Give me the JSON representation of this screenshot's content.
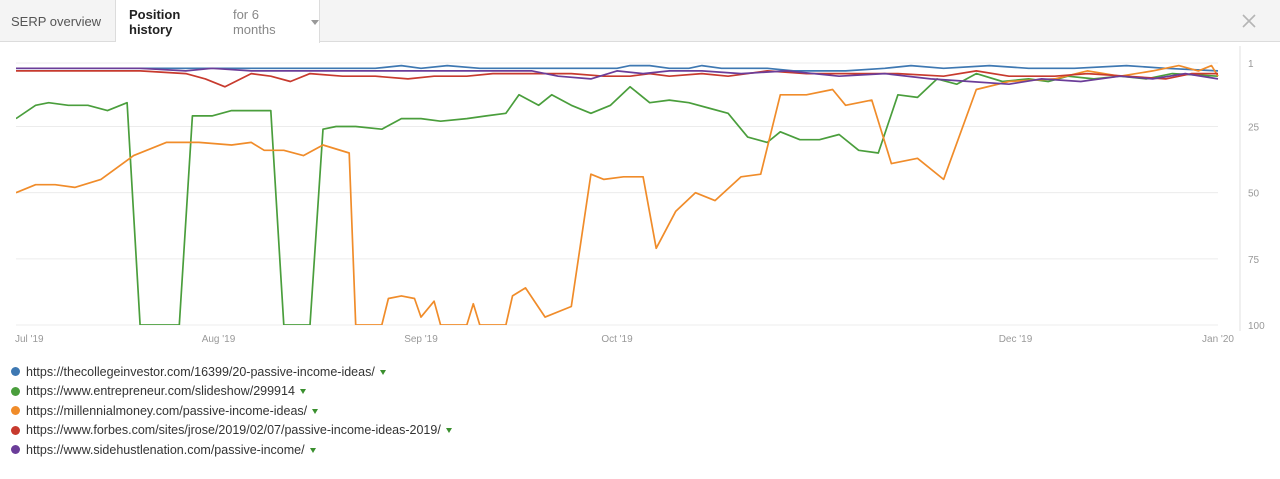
{
  "tabs": {
    "serp_label": "SERP overview",
    "history_label": "Position history",
    "history_period": "for 6 months"
  },
  "chart_data": {
    "type": "line",
    "title": "",
    "xlabel": "",
    "ylabel": "",
    "x_axis": {
      "type": "date",
      "range": [
        "2019-07-01",
        "2020-01-01"
      ],
      "ticks": [
        {
          "date": "2019-07-01",
          "label": "Jul '19"
        },
        {
          "date": "2019-08-01",
          "label": "Aug '19"
        },
        {
          "date": "2019-09-01",
          "label": "Sep '19"
        },
        {
          "date": "2019-10-01",
          "label": "Oct '19"
        },
        {
          "date": "2019-12-01",
          "label": "Dec '19"
        },
        {
          "date": "2020-01-01",
          "label": "Jan '20"
        }
      ]
    },
    "y_axis": {
      "reversed": true,
      "range": [
        1,
        100
      ],
      "ticks": [
        {
          "value": 1,
          "label": "1"
        },
        {
          "value": 25,
          "label": "25"
        },
        {
          "value": 50,
          "label": "50"
        },
        {
          "value": 75,
          "label": "75"
        },
        {
          "value": 100,
          "label": "100"
        }
      ]
    },
    "grid": true,
    "legend_position": "bottom-left",
    "series": [
      {
        "name": "https://thecollegeinvestor.com/16399/20-passive-income-ideas/",
        "color": "#3e78b2",
        "points": [
          [
            "2019-07-01",
            3
          ],
          [
            "2019-07-15",
            3
          ],
          [
            "2019-08-01",
            3
          ],
          [
            "2019-08-15",
            3
          ],
          [
            "2019-08-25",
            3
          ],
          [
            "2019-08-29",
            2
          ],
          [
            "2019-09-01",
            3
          ],
          [
            "2019-09-05",
            2
          ],
          [
            "2019-09-10",
            3
          ],
          [
            "2019-09-20",
            3
          ],
          [
            "2019-10-01",
            3
          ],
          [
            "2019-10-03",
            2
          ],
          [
            "2019-10-06",
            2
          ],
          [
            "2019-10-09",
            3
          ],
          [
            "2019-10-12",
            3
          ],
          [
            "2019-10-14",
            2
          ],
          [
            "2019-10-17",
            3
          ],
          [
            "2019-10-24",
            3
          ],
          [
            "2019-10-28",
            4
          ],
          [
            "2019-11-05",
            4
          ],
          [
            "2019-11-11",
            3
          ],
          [
            "2019-11-15",
            2
          ],
          [
            "2019-11-20",
            3
          ],
          [
            "2019-11-27",
            2
          ],
          [
            "2019-12-03",
            3
          ],
          [
            "2019-12-10",
            3
          ],
          [
            "2019-12-18",
            2
          ],
          [
            "2019-12-24",
            3
          ],
          [
            "2020-01-01",
            4
          ]
        ]
      },
      {
        "name": "https://www.entrepreneur.com/slideshow/299914",
        "color": "#4a9e3c",
        "points": [
          [
            "2019-07-01",
            22
          ],
          [
            "2019-07-04",
            17
          ],
          [
            "2019-07-06",
            16
          ],
          [
            "2019-07-09",
            17
          ],
          [
            "2019-07-12",
            17
          ],
          [
            "2019-07-15",
            19
          ],
          [
            "2019-07-18",
            16
          ],
          [
            "2019-07-20",
            100
          ],
          [
            "2019-07-26",
            100
          ],
          [
            "2019-07-28",
            21
          ],
          [
            "2019-07-31",
            21
          ],
          [
            "2019-08-03",
            19
          ],
          [
            "2019-08-06",
            19
          ],
          [
            "2019-08-09",
            19
          ],
          [
            "2019-08-11",
            100
          ],
          [
            "2019-08-15",
            100
          ],
          [
            "2019-08-17",
            26
          ],
          [
            "2019-08-19",
            25
          ],
          [
            "2019-08-22",
            25
          ],
          [
            "2019-08-26",
            26
          ],
          [
            "2019-08-29",
            22
          ],
          [
            "2019-09-01",
            22
          ],
          [
            "2019-09-04",
            23
          ],
          [
            "2019-09-08",
            22
          ],
          [
            "2019-09-11",
            21
          ],
          [
            "2019-09-14",
            20
          ],
          [
            "2019-09-16",
            13
          ],
          [
            "2019-09-19",
            17
          ],
          [
            "2019-09-21",
            13
          ],
          [
            "2019-09-24",
            17
          ],
          [
            "2019-09-27",
            20
          ],
          [
            "2019-09-30",
            17
          ],
          [
            "2019-10-03",
            10
          ],
          [
            "2019-10-06",
            16
          ],
          [
            "2019-10-09",
            15
          ],
          [
            "2019-10-12",
            16
          ],
          [
            "2019-10-15",
            18
          ],
          [
            "2019-10-18",
            20
          ],
          [
            "2019-10-21",
            29
          ],
          [
            "2019-10-24",
            31
          ],
          [
            "2019-10-26",
            27
          ],
          [
            "2019-10-29",
            30
          ],
          [
            "2019-11-01",
            30
          ],
          [
            "2019-11-04",
            28
          ],
          [
            "2019-11-07",
            34
          ],
          [
            "2019-11-10",
            35
          ],
          [
            "2019-11-13",
            13
          ],
          [
            "2019-11-16",
            14
          ],
          [
            "2019-11-19",
            7
          ],
          [
            "2019-11-22",
            9
          ],
          [
            "2019-11-25",
            5
          ],
          [
            "2019-11-29",
            8
          ],
          [
            "2019-12-03",
            7
          ],
          [
            "2019-12-06",
            8
          ],
          [
            "2019-12-09",
            6
          ],
          [
            "2019-12-13",
            7
          ],
          [
            "2019-12-17",
            6
          ],
          [
            "2019-12-21",
            7
          ],
          [
            "2019-12-25",
            5
          ],
          [
            "2020-01-01",
            6
          ]
        ]
      },
      {
        "name": "https://millennialmoney.com/passive-income-ideas/",
        "color": "#f08c2a",
        "points": [
          [
            "2019-07-01",
            50
          ],
          [
            "2019-07-04",
            47
          ],
          [
            "2019-07-07",
            47
          ],
          [
            "2019-07-10",
            48
          ],
          [
            "2019-07-14",
            45
          ],
          [
            "2019-07-19",
            36
          ],
          [
            "2019-07-24",
            31
          ],
          [
            "2019-07-29",
            31
          ],
          [
            "2019-08-03",
            32
          ],
          [
            "2019-08-06",
            31
          ],
          [
            "2019-08-08",
            34
          ],
          [
            "2019-08-11",
            34
          ],
          [
            "2019-08-14",
            36
          ],
          [
            "2019-08-17",
            32
          ],
          [
            "2019-08-21",
            35
          ],
          [
            "2019-08-22",
            100
          ],
          [
            "2019-08-26",
            100
          ],
          [
            "2019-08-27",
            90
          ],
          [
            "2019-08-29",
            89
          ],
          [
            "2019-08-31",
            90
          ],
          [
            "2019-09-01",
            97
          ],
          [
            "2019-09-03",
            91
          ],
          [
            "2019-09-04",
            100
          ],
          [
            "2019-09-08",
            100
          ],
          [
            "2019-09-09",
            92
          ],
          [
            "2019-09-10",
            100
          ],
          [
            "2019-09-14",
            100
          ],
          [
            "2019-09-15",
            89
          ],
          [
            "2019-09-17",
            86
          ],
          [
            "2019-09-20",
            97
          ],
          [
            "2019-09-24",
            93
          ],
          [
            "2019-09-27",
            43
          ],
          [
            "2019-09-29",
            45
          ],
          [
            "2019-10-02",
            44
          ],
          [
            "2019-10-05",
            44
          ],
          [
            "2019-10-07",
            71
          ],
          [
            "2019-10-10",
            57
          ],
          [
            "2019-10-13",
            50
          ],
          [
            "2019-10-16",
            53
          ],
          [
            "2019-10-20",
            44
          ],
          [
            "2019-10-23",
            43
          ],
          [
            "2019-10-26",
            13
          ],
          [
            "2019-10-30",
            13
          ],
          [
            "2019-11-03",
            11
          ],
          [
            "2019-11-05",
            17
          ],
          [
            "2019-11-09",
            15
          ],
          [
            "2019-11-12",
            39
          ],
          [
            "2019-11-16",
            37
          ],
          [
            "2019-11-20",
            45
          ],
          [
            "2019-11-25",
            11
          ],
          [
            "2019-11-30",
            8
          ],
          [
            "2019-12-07",
            7
          ],
          [
            "2019-12-12",
            4
          ],
          [
            "2019-12-17",
            6
          ],
          [
            "2019-12-22",
            4
          ],
          [
            "2019-12-26",
            2
          ],
          [
            "2019-12-29",
            4
          ],
          [
            "2019-12-31",
            2
          ],
          [
            "2020-01-01",
            6
          ]
        ]
      },
      {
        "name": "https://www.forbes.com/sites/jrose/2019/02/07/passive-income-ideas-2019/",
        "color": "#c73a2e",
        "points": [
          [
            "2019-07-01",
            4
          ],
          [
            "2019-07-10",
            4
          ],
          [
            "2019-07-20",
            4
          ],
          [
            "2019-07-27",
            5
          ],
          [
            "2019-07-30",
            7
          ],
          [
            "2019-08-02",
            10
          ],
          [
            "2019-08-06",
            5
          ],
          [
            "2019-08-09",
            6
          ],
          [
            "2019-08-12",
            8
          ],
          [
            "2019-08-15",
            5
          ],
          [
            "2019-08-20",
            6
          ],
          [
            "2019-08-25",
            6
          ],
          [
            "2019-08-30",
            7
          ],
          [
            "2019-09-03",
            6
          ],
          [
            "2019-09-08",
            6
          ],
          [
            "2019-09-12",
            5
          ],
          [
            "2019-09-18",
            5
          ],
          [
            "2019-09-24",
            5
          ],
          [
            "2019-09-29",
            6
          ],
          [
            "2019-10-03",
            6
          ],
          [
            "2019-10-06",
            5
          ],
          [
            "2019-10-09",
            6
          ],
          [
            "2019-10-14",
            5
          ],
          [
            "2019-10-18",
            6
          ],
          [
            "2019-10-24",
            4
          ],
          [
            "2019-10-30",
            5
          ],
          [
            "2019-11-06",
            5
          ],
          [
            "2019-11-13",
            5
          ],
          [
            "2019-11-20",
            6
          ],
          [
            "2019-11-25",
            4
          ],
          [
            "2019-11-30",
            6
          ],
          [
            "2019-12-07",
            6
          ],
          [
            "2019-12-12",
            5
          ],
          [
            "2019-12-18",
            6
          ],
          [
            "2019-12-24",
            7
          ],
          [
            "2019-12-28",
            5
          ],
          [
            "2020-01-01",
            5
          ]
        ]
      },
      {
        "name": "https://www.sidehustlenation.com/passive-income/",
        "color": "#6b3d99",
        "points": [
          [
            "2019-07-01",
            3
          ],
          [
            "2019-07-20",
            3
          ],
          [
            "2019-07-27",
            4
          ],
          [
            "2019-07-31",
            3
          ],
          [
            "2019-08-06",
            4
          ],
          [
            "2019-08-12",
            4
          ],
          [
            "2019-08-18",
            4
          ],
          [
            "2019-08-25",
            4
          ],
          [
            "2019-09-02",
            4
          ],
          [
            "2019-09-08",
            4
          ],
          [
            "2019-09-13",
            4
          ],
          [
            "2019-09-18",
            4
          ],
          [
            "2019-09-22",
            6
          ],
          [
            "2019-09-27",
            7
          ],
          [
            "2019-10-01",
            4
          ],
          [
            "2019-10-05",
            5
          ],
          [
            "2019-10-09",
            4
          ],
          [
            "2019-10-14",
            4
          ],
          [
            "2019-10-20",
            5
          ],
          [
            "2019-10-27",
            4
          ],
          [
            "2019-11-04",
            6
          ],
          [
            "2019-11-11",
            5
          ],
          [
            "2019-11-18",
            7
          ],
          [
            "2019-11-24",
            8
          ],
          [
            "2019-11-30",
            9
          ],
          [
            "2019-12-05",
            7
          ],
          [
            "2019-12-11",
            8
          ],
          [
            "2019-12-17",
            6
          ],
          [
            "2019-12-22",
            7
          ],
          [
            "2019-12-27",
            5
          ],
          [
            "2020-01-01",
            7
          ]
        ]
      }
    ]
  }
}
